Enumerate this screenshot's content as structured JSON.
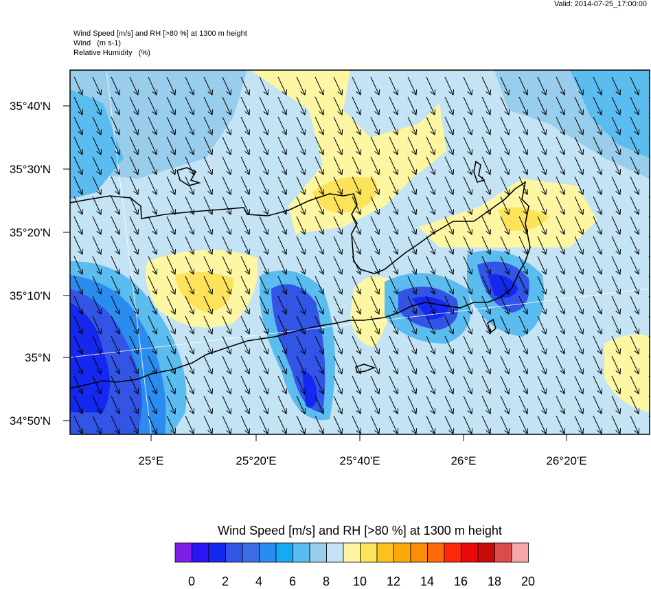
{
  "valid_text": "Valid: 2014-07-25_17:00:00",
  "title_lines": {
    "line1": "Wind Speed [m/s] and RH [>80 %] at 1300 m height",
    "line2": "Wind   (m s-1)",
    "line3": "Relative Humidity   (%)"
  },
  "lat_labels": [
    "35°40'N",
    "35°30'N",
    "35°20'N",
    "35°10'N",
    "35°N",
    "34°50'N"
  ],
  "lon_labels": [
    "25°E",
    "25°20'E",
    "25°40'E",
    "26°E",
    "26°20'E"
  ],
  "colorbar": {
    "title": "Wind Speed [m/s] and RH [>80 %] at 1300 m height",
    "tick_labels": [
      "0",
      "2",
      "4",
      "6",
      "8",
      "10",
      "12",
      "14",
      "16",
      "18",
      "20"
    ],
    "colors": [
      "#7c1ee8",
      "#2a16f0",
      "#1428f0",
      "#3355e6",
      "#3a6de6",
      "#2b8cf0",
      "#17aaf4",
      "#5bbcef",
      "#99cdec",
      "#c4e3f4",
      "#fdf7a4",
      "#fde35a",
      "#fcc31e",
      "#fca80a",
      "#fc8c0a",
      "#fc6a0a",
      "#fa2a0a",
      "#e80a0a",
      "#c80a0a",
      "#dc4a4a",
      "#f6a6a6"
    ]
  },
  "wind_direction": "north-northwest"
}
